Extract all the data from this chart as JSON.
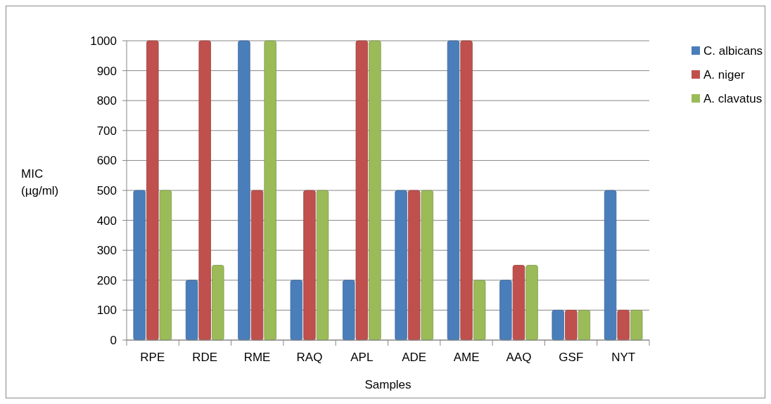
{
  "chart_data": {
    "type": "bar",
    "xlabel": "Samples",
    "ylabel": "MIC\n(µg/ml)",
    "categories": [
      "RPE",
      "RDE",
      "RME",
      "RAQ",
      "APL",
      "ADE",
      "AME",
      "AAQ",
      "GSF",
      "NYT"
    ],
    "series": [
      {
        "name": "C. albicans",
        "color": "#4a7ebb",
        "values": [
          500,
          200,
          1000,
          200,
          200,
          500,
          1000,
          200,
          100,
          500
        ]
      },
      {
        "name": "A. niger",
        "color": "#c0504d",
        "values": [
          1000,
          1000,
          500,
          500,
          1000,
          500,
          1000,
          250,
          100,
          100
        ]
      },
      {
        "name": "A. clavatus",
        "color": "#9bbb59",
        "values": [
          500,
          250,
          1000,
          500,
          1000,
          500,
          200,
          250,
          100,
          100
        ]
      }
    ],
    "ylim": [
      0,
      1000
    ],
    "yticks": [
      0,
      100,
      200,
      300,
      400,
      500,
      600,
      700,
      800,
      900,
      1000
    ],
    "grid": "y",
    "legend": "top right"
  }
}
